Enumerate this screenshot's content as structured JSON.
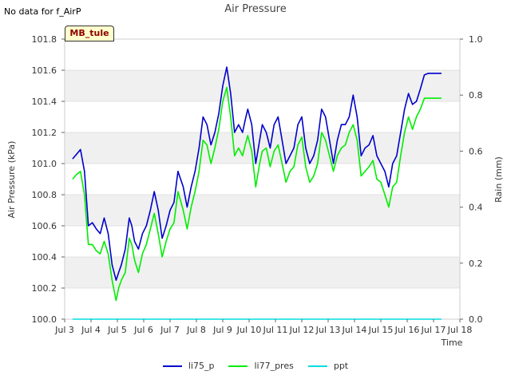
{
  "no_data_text": "No data for f_AirP",
  "chart_data": {
    "type": "line",
    "title": "Air Pressure",
    "xlabel": "Time",
    "ylabel": "Air Pressure (kPa)",
    "y2label": "Rain (mm)",
    "badge": "MB_tule",
    "xlim": [
      3,
      18
    ],
    "ylim": [
      100.0,
      101.8
    ],
    "y2lim": [
      0.0,
      1.0
    ],
    "x_ticks": [
      3,
      4,
      5,
      6,
      7,
      8,
      9,
      10,
      11,
      12,
      13,
      14,
      15,
      16,
      17,
      18
    ],
    "x_tick_labels": [
      "Jul 3",
      "Jul 4",
      "Jul 5",
      "Jul 6",
      "Jul 7",
      "Jul 8",
      "Jul 9",
      "Jul 10",
      "Jul 11",
      "Jul 12",
      "Jul 13",
      "Jul 14",
      "Jul 15",
      "Jul 16",
      "Jul 17",
      "Jul 18"
    ],
    "y_ticks": [
      100.0,
      100.2,
      100.4,
      100.6,
      100.8,
      101.0,
      101.2,
      101.4,
      101.6,
      101.8
    ],
    "y_tick_labels": [
      "100.0",
      "100.2",
      "100.4",
      "100.6",
      "100.8",
      "101.0",
      "101.2",
      "101.4",
      "101.6",
      "101.8"
    ],
    "y2_ticks": [
      0.0,
      0.2,
      0.4,
      0.6,
      0.8,
      1.0
    ],
    "y2_tick_labels": [
      "0.0",
      "0.2",
      "0.4",
      "0.6",
      "0.8",
      "1.0"
    ],
    "series": [
      {
        "name": "li75_p",
        "color": "#0000cc",
        "axis": "left",
        "x": [
          3.3,
          3.45,
          3.6,
          3.75,
          3.9,
          4.05,
          4.2,
          4.35,
          4.5,
          4.65,
          4.8,
          4.95,
          5.05,
          5.15,
          5.3,
          5.45,
          5.55,
          5.65,
          5.8,
          5.95,
          6.1,
          6.25,
          6.4,
          6.55,
          6.7,
          6.85,
          7.0,
          7.15,
          7.3,
          7.5,
          7.65,
          7.8,
          7.95,
          8.1,
          8.25,
          8.4,
          8.55,
          8.7,
          8.85,
          9.0,
          9.15,
          9.3,
          9.45,
          9.6,
          9.75,
          9.85,
          9.95,
          10.1,
          10.25,
          10.4,
          10.5,
          10.65,
          10.8,
          10.95,
          11.1,
          11.25,
          11.4,
          11.55,
          11.7,
          11.85,
          12.0,
          12.15,
          12.3,
          12.45,
          12.6,
          12.75,
          12.9,
          13.05,
          13.2,
          13.35,
          13.5,
          13.65,
          13.8,
          13.95,
          14.1,
          14.25,
          14.4,
          14.55,
          14.7,
          14.85,
          15.0,
          15.15,
          15.3,
          15.45,
          15.6,
          15.75,
          15.9,
          16.05,
          16.2,
          16.35,
          16.5,
          16.65,
          16.8,
          16.95,
          17.1,
          17.2,
          17.3
        ],
        "values": [
          101.03,
          101.06,
          101.09,
          100.95,
          100.6,
          100.62,
          100.58,
          100.55,
          100.65,
          100.55,
          100.35,
          100.25,
          100.3,
          100.35,
          100.45,
          100.65,
          100.6,
          100.5,
          100.45,
          100.55,
          100.6,
          100.7,
          100.82,
          100.7,
          100.52,
          100.6,
          100.7,
          100.75,
          100.95,
          100.85,
          100.72,
          100.85,
          100.95,
          101.1,
          101.3,
          101.25,
          101.12,
          101.2,
          101.32,
          101.5,
          101.62,
          101.45,
          101.2,
          101.25,
          101.2,
          101.28,
          101.35,
          101.25,
          101.0,
          101.15,
          101.25,
          101.2,
          101.1,
          101.25,
          101.3,
          101.15,
          101.0,
          101.05,
          101.1,
          101.25,
          101.3,
          101.1,
          101.0,
          101.05,
          101.15,
          101.35,
          101.3,
          101.15,
          101.0,
          101.15,
          101.25,
          101.25,
          101.3,
          101.44,
          101.3,
          101.05,
          101.1,
          101.12,
          101.18,
          101.05,
          101.0,
          100.95,
          100.85,
          101.0,
          101.05,
          101.2,
          101.35,
          101.45,
          101.38,
          101.4,
          101.48,
          101.57,
          101.58,
          101.58,
          101.58,
          101.58,
          101.58
        ]
      },
      {
        "name": "li77_pres",
        "color": "#00ee00",
        "axis": "left",
        "x": [
          3.3,
          3.45,
          3.6,
          3.75,
          3.9,
          4.05,
          4.2,
          4.35,
          4.5,
          4.65,
          4.8,
          4.95,
          5.05,
          5.15,
          5.3,
          5.45,
          5.55,
          5.65,
          5.8,
          5.95,
          6.1,
          6.25,
          6.4,
          6.55,
          6.7,
          6.85,
          7.0,
          7.15,
          7.3,
          7.5,
          7.65,
          7.8,
          7.95,
          8.1,
          8.25,
          8.4,
          8.55,
          8.7,
          8.85,
          9.0,
          9.15,
          9.3,
          9.45,
          9.6,
          9.75,
          9.85,
          9.95,
          10.1,
          10.25,
          10.4,
          10.5,
          10.65,
          10.8,
          10.95,
          11.1,
          11.25,
          11.4,
          11.55,
          11.7,
          11.85,
          12.0,
          12.15,
          12.3,
          12.45,
          12.6,
          12.75,
          12.9,
          13.05,
          13.2,
          13.35,
          13.5,
          13.65,
          13.8,
          13.95,
          14.1,
          14.25,
          14.4,
          14.55,
          14.7,
          14.85,
          15.0,
          15.15,
          15.3,
          15.45,
          15.6,
          15.75,
          15.9,
          16.05,
          16.2,
          16.35,
          16.5,
          16.65,
          16.8,
          16.95,
          17.1,
          17.2,
          17.3
        ],
        "values": [
          100.9,
          100.93,
          100.95,
          100.8,
          100.48,
          100.48,
          100.44,
          100.42,
          100.5,
          100.42,
          100.25,
          100.12,
          100.2,
          100.25,
          100.3,
          100.52,
          100.48,
          100.38,
          100.3,
          100.42,
          100.48,
          100.58,
          100.68,
          100.55,
          100.4,
          100.5,
          100.58,
          100.62,
          100.82,
          100.7,
          100.58,
          100.72,
          100.82,
          100.95,
          101.15,
          101.12,
          101.0,
          101.1,
          101.22,
          101.4,
          101.49,
          101.3,
          101.05,
          101.1,
          101.05,
          101.12,
          101.18,
          101.08,
          100.85,
          101.0,
          101.08,
          101.1,
          100.98,
          101.08,
          101.12,
          101.0,
          100.88,
          100.95,
          100.98,
          101.12,
          101.17,
          100.98,
          100.88,
          100.92,
          101.0,
          101.2,
          101.15,
          101.05,
          100.95,
          101.05,
          101.1,
          101.12,
          101.2,
          101.25,
          101.15,
          100.92,
          100.95,
          100.98,
          101.02,
          100.9,
          100.88,
          100.8,
          100.72,
          100.85,
          100.88,
          101.05,
          101.2,
          101.3,
          101.22,
          101.3,
          101.35,
          101.42,
          101.42,
          101.42,
          101.42,
          101.42,
          101.42
        ]
      },
      {
        "name": "ppt",
        "color": "#00dddd",
        "axis": "right",
        "x": [
          3.3,
          17.3
        ],
        "values": [
          0.0,
          0.0
        ]
      }
    ],
    "legend": [
      "li75_p",
      "li77_pres",
      "ppt"
    ]
  }
}
